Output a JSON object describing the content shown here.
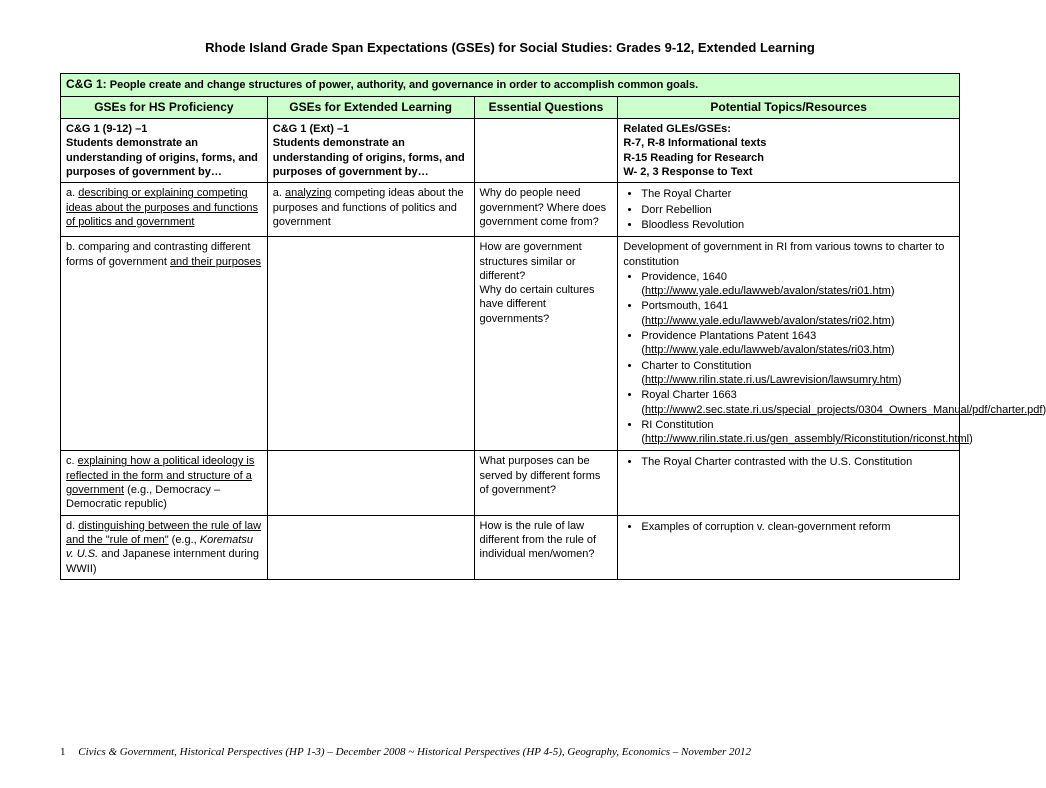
{
  "title": "Rhode Island Grade Span Expectations (GSEs) for Social Studies: Grades 9-12, Extended Learning",
  "standard": {
    "code": "C&G 1:",
    "desc": "People create and change structures of power, authority, and governance in order to accomplish common goals."
  },
  "columns": {
    "c1": "GSEs for HS Proficiency",
    "c2": "GSEs for Extended Learning",
    "c3": "Essential Questions",
    "c4": "Potential Topics/Resources"
  },
  "intro": {
    "c1_code": "C&G 1 (9-12) –1",
    "c1_text": "Students demonstrate an understanding of origins, forms, and purposes of government by…",
    "c2_code": "C&G 1 (Ext) –1",
    "c2_text": "Students demonstrate an understanding of origins, forms, and purposes of government by…",
    "c4_label": "Related GLEs/GSEs:",
    "c4_l1": "R-7, R-8  Informational texts",
    "c4_l2": "R-15 Reading for Research",
    "c4_l3": "W- 2, 3  Response to Text"
  },
  "rows": {
    "a": {
      "c1_pre": "a. ",
      "c1_u": "describing or explaining competing ideas about the purposes and functions of politics and government",
      "c2_pre": "a. ",
      "c2_u": "analyzing",
      "c2_rest": " competing ideas about the purposes and functions of politics and government",
      "c3": "Why do people need government? Where does government come from?",
      "c4_items": [
        "The Royal Charter",
        "Dorr Rebellion",
        "Bloodless Revolution"
      ]
    },
    "b": {
      "c1": "b. comparing and contrasting different forms of government ",
      "c1_u": "and their purposes",
      "c3": "How are government structures similar or different?\nWhy do certain cultures have different governments?",
      "c4_intro": "Development of government in RI from various towns to charter to constitution",
      "c4_items_html": [
        {
          "text": "Providence, 1640 (",
          "link": "http://www.yale.edu/lawweb/avalon/states/ri01.htm",
          "suffix": ")"
        },
        {
          "text": "Portsmouth, 1641 (",
          "link": "http://www.yale.edu/lawweb/avalon/states/ri02.htm",
          "suffix": ")"
        },
        {
          "text": "Providence Plantations Patent 1643 (",
          "link": "http://www.yale.edu/lawweb/avalon/states/ri03.htm",
          "suffix": ")"
        },
        {
          "text": "Charter to Constitution (",
          "link": "http://www.rilin.state.ri.us/Lawrevision/lawsumry.htm",
          "suffix": ")"
        },
        {
          "text": "Royal Charter 1663 (",
          "link": "http://www2.sec.state.ri.us/special_projects/0304_Owners_Manual/pdf/charter.pdf",
          "suffix": ")"
        },
        {
          "text": "RI Constitution (",
          "link": "http://www.rilin.state.ri.us/gen_assembly/Riconstitution/riconst.html",
          "suffix": ")"
        }
      ]
    },
    "c": {
      "c1_pre": "c. ",
      "c1_u": "explaining how a political ideology is reflected in the form and structure of a government",
      "c1_rest": " (e.g., Democracy – Democratic republic)",
      "c3": "What purposes can be served by different forms of government?",
      "c4_items": [
        "The Royal Charter contrasted with the U.S. Constitution"
      ]
    },
    "d": {
      "c1_pre": "d. ",
      "c1_u": "distinguishing between the rule of law and the \"rule of men\"",
      "c1_rest_pre": " (e.g., ",
      "c1_italic": "Korematsu v. U.S.",
      "c1_rest_post": " and Japanese internment during WWII)",
      "c3": "How is the rule of law different from the rule of individual men/women?",
      "c4_items": [
        "Examples of corruption v. clean-government reform"
      ]
    }
  },
  "footer": {
    "page": "1",
    "text": "Civics & Government, Historical Perspectives (HP 1-3) – December 2008   ~   Historical Perspectives (HP 4-5), Geography, Economics – November 2012"
  }
}
